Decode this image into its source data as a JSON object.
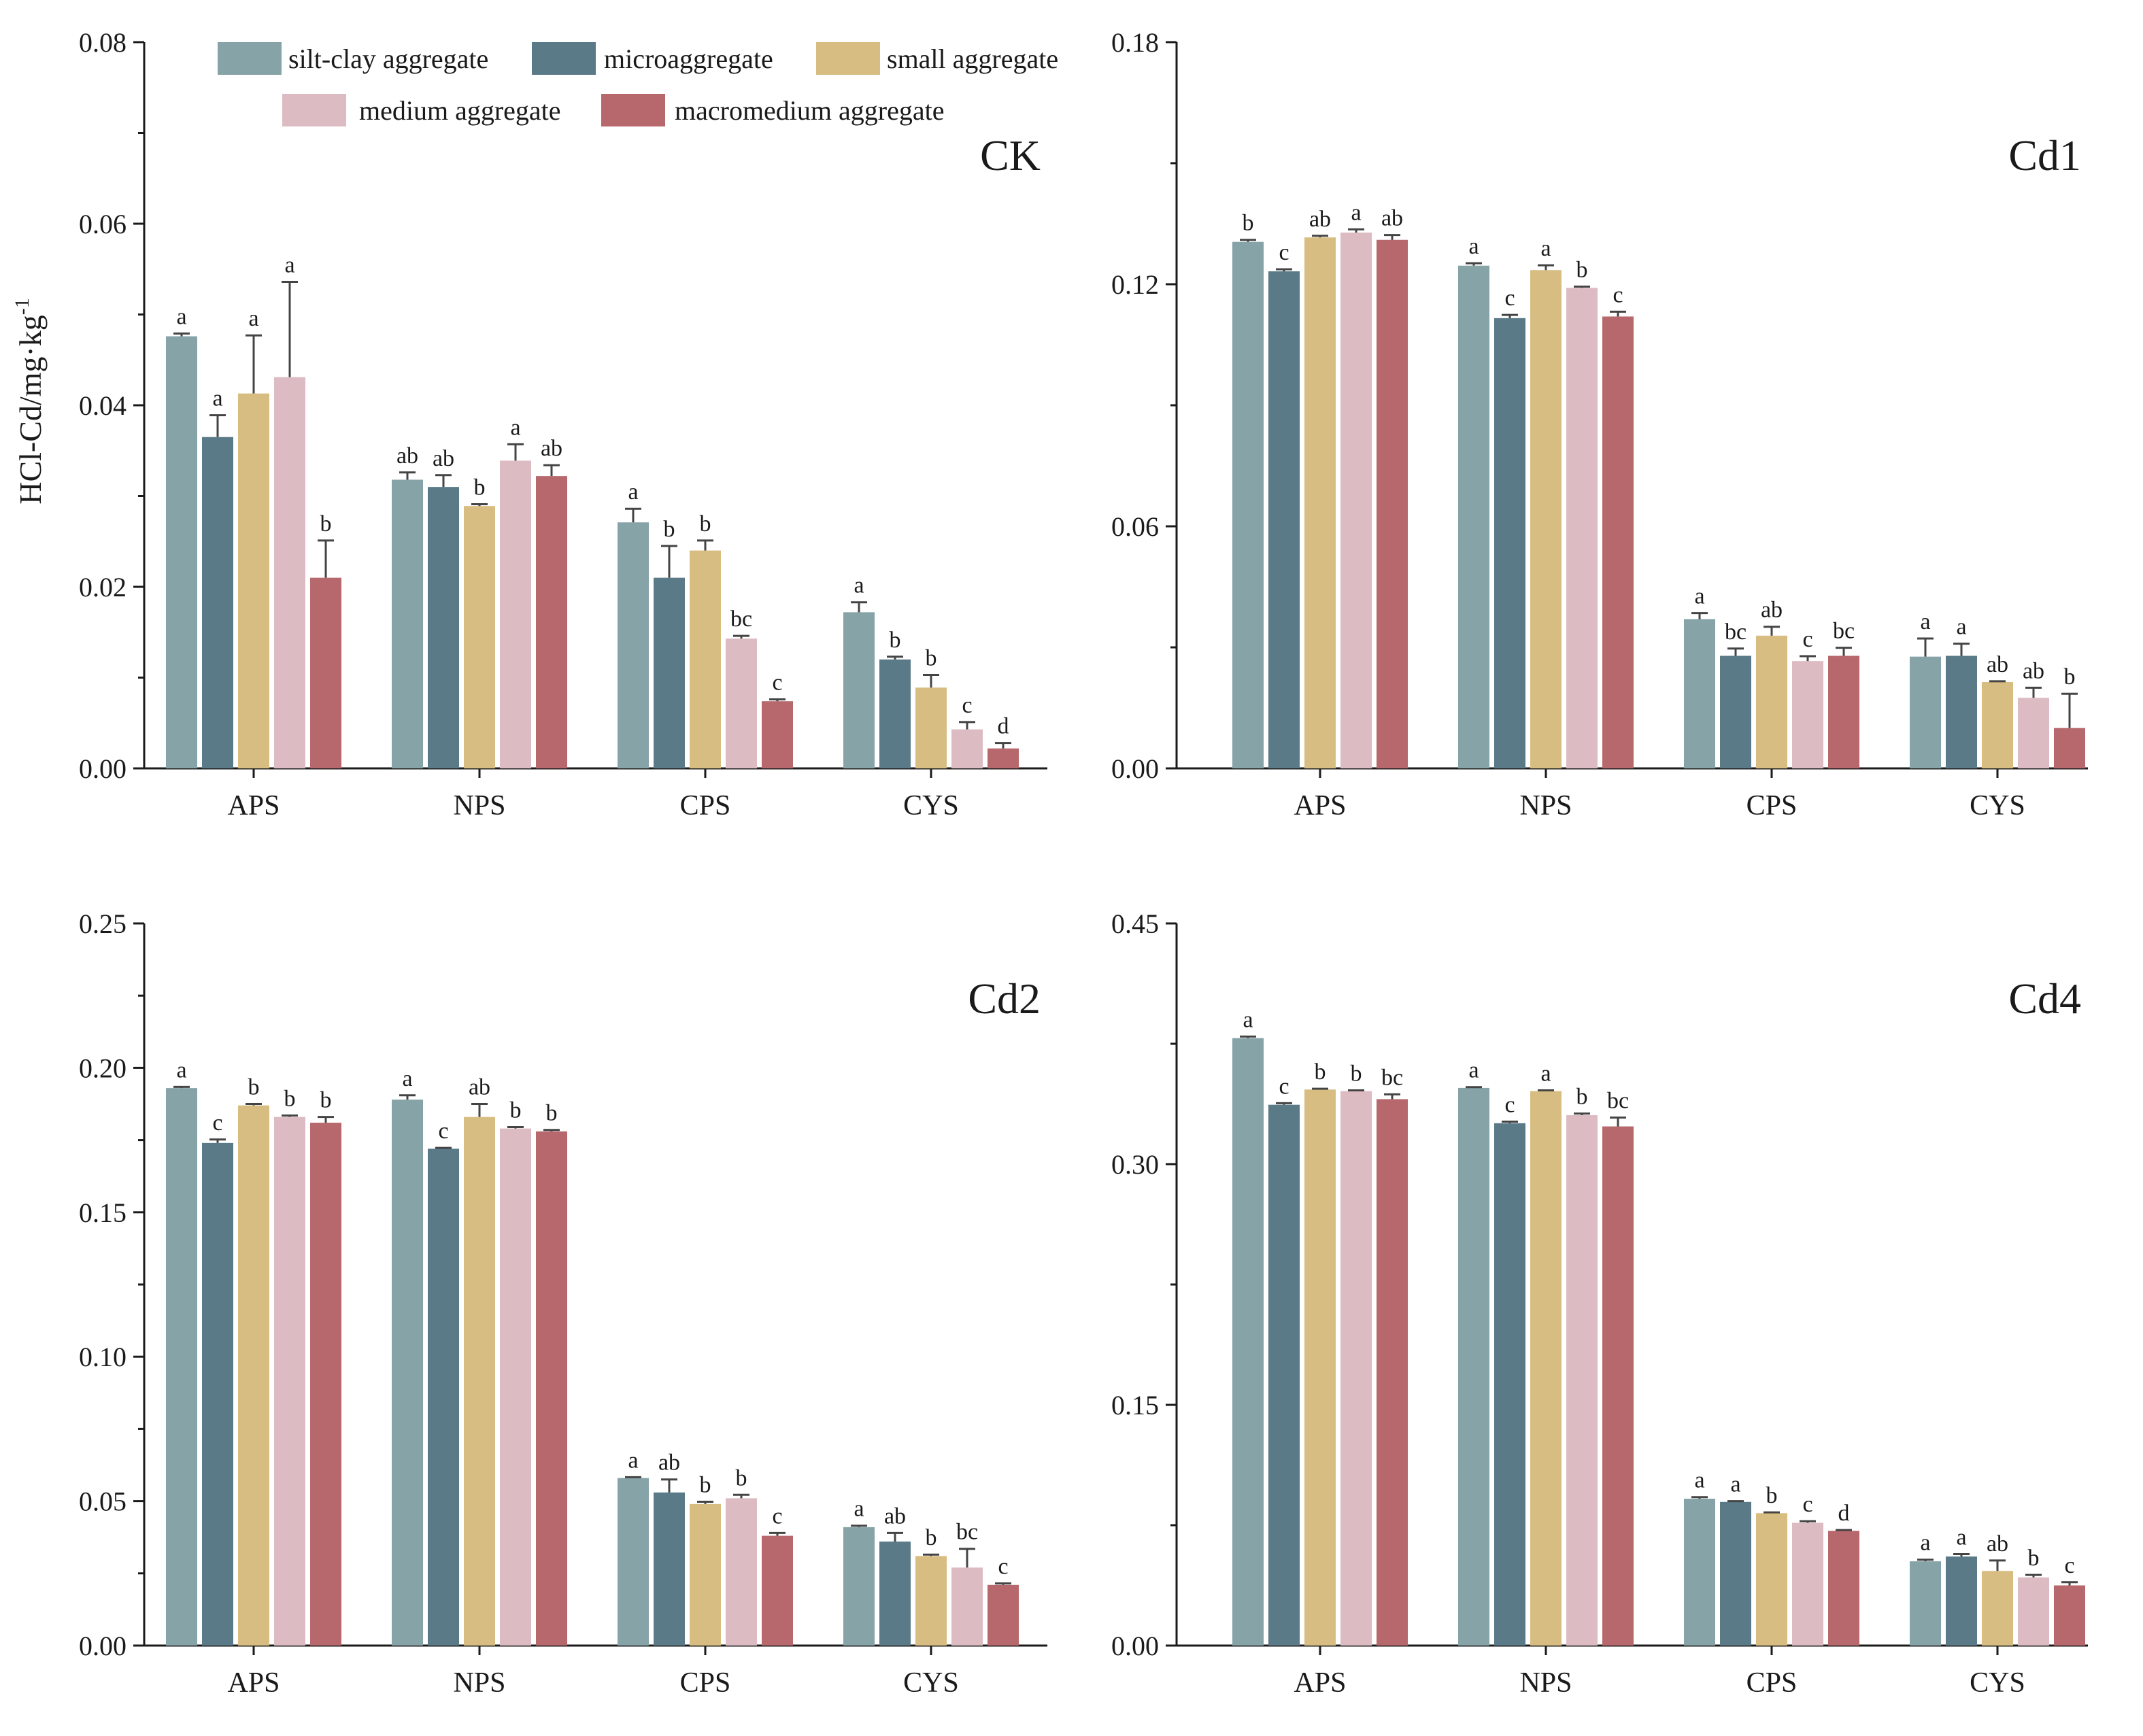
{
  "chart_data": {
    "type": "bar",
    "ylabel": "HCl-Cd/mg·kg",
    "ylabel_superscript": "-1",
    "categories": [
      "APS",
      "NPS",
      "CPS",
      "CYS"
    ],
    "series_names": [
      "silt-clay aggregate",
      "microaggregate",
      "small aggregate",
      "medium aggregate",
      "macromedium aggregate"
    ],
    "series_colors": [
      "#86a3a8",
      "#5a7a88",
      "#d8bd82",
      "#dcbcc2",
      "#b6686c"
    ],
    "panels": [
      {
        "label": "CK",
        "ylim": [
          0,
          0.08
        ],
        "yticks": [
          "0.00",
          "0.02",
          "0.04",
          "0.06",
          "0.08"
        ],
        "minor_ticks": true,
        "values": [
          [
            0.0476,
            0.0365,
            0.0413,
            0.0431,
            0.021
          ],
          [
            0.0318,
            0.031,
            0.0289,
            0.0339,
            0.0322
          ],
          [
            0.0271,
            0.021,
            0.024,
            0.0143,
            0.0074
          ],
          [
            0.0172,
            0.012,
            0.0089,
            0.0043,
            0.0022
          ]
        ],
        "errors": [
          [
            0.0003,
            0.0024,
            0.0064,
            0.0105,
            0.0041
          ],
          [
            0.0008,
            0.0013,
            0.0002,
            0.0018,
            0.0012
          ],
          [
            0.0015,
            0.0035,
            0.0011,
            0.0003,
            0.0002
          ],
          [
            0.0011,
            0.0003,
            0.0014,
            0.0008,
            0.0006
          ]
        ],
        "letters": [
          [
            "a",
            "a",
            "a",
            "a",
            "b"
          ],
          [
            "ab",
            "ab",
            "b",
            "a",
            "ab"
          ],
          [
            "a",
            "b",
            "b",
            "bc",
            "c"
          ],
          [
            "a",
            "b",
            "b",
            "c",
            "d"
          ]
        ]
      },
      {
        "label": "Cd1",
        "ylim": [
          0,
          0.18
        ],
        "yticks": [
          "0.00",
          "0.06",
          "0.12",
          "0.18"
        ],
        "minor_ticks": true,
        "values": [
          [
            0.1305,
            0.1232,
            0.1316,
            0.1328,
            0.131
          ],
          [
            0.1246,
            0.1116,
            0.1235,
            0.1191,
            0.112
          ],
          [
            0.037,
            0.0279,
            0.0329,
            0.0266,
            0.0279
          ],
          [
            0.0277,
            0.0279,
            0.0214,
            0.0175,
            0.01
          ]
        ],
        "errors": [
          [
            0.0005,
            0.0005,
            0.0004,
            0.0008,
            0.0012
          ],
          [
            0.0006,
            0.0008,
            0.0012,
            0.0003,
            0.0012
          ],
          [
            0.0015,
            0.0018,
            0.0022,
            0.0012,
            0.002
          ],
          [
            0.0045,
            0.003,
            0.0002,
            0.0025,
            0.0085
          ]
        ],
        "letters": [
          [
            "b",
            "c",
            "ab",
            "a",
            "ab"
          ],
          [
            "a",
            "c",
            "a",
            "b",
            "c"
          ],
          [
            "a",
            "bc",
            "ab",
            "c",
            "bc"
          ],
          [
            "a",
            "a",
            "ab",
            "ab",
            "b"
          ]
        ]
      },
      {
        "label": "Cd2",
        "ylim": [
          0,
          0.25
        ],
        "yticks": [
          "0.00",
          "0.05",
          "0.10",
          "0.15",
          "0.20",
          "0.25"
        ],
        "minor_ticks": true,
        "values": [
          [
            0.193,
            0.174,
            0.187,
            0.183,
            0.181
          ],
          [
            0.189,
            0.172,
            0.183,
            0.179,
            0.178
          ],
          [
            0.058,
            0.053,
            0.049,
            0.051,
            0.038
          ],
          [
            0.041,
            0.036,
            0.031,
            0.027,
            0.021
          ]
        ],
        "errors": [
          [
            0.0004,
            0.0012,
            0.0005,
            0.0005,
            0.002
          ],
          [
            0.0015,
            0.0003,
            0.0045,
            0.0005,
            0.0005
          ],
          [
            0.0003,
            0.0045,
            0.0008,
            0.0012,
            0.001
          ],
          [
            0.0005,
            0.003,
            0.0005,
            0.0065,
            0.0005
          ]
        ],
        "letters": [
          [
            "a",
            "c",
            "b",
            "b",
            "b"
          ],
          [
            "a",
            "c",
            "ab",
            "b",
            "b"
          ],
          [
            "a",
            "ab",
            "b",
            "b",
            "c"
          ],
          [
            "a",
            "ab",
            "b",
            "bc",
            "c"
          ]
        ]
      },
      {
        "label": "Cd4",
        "ylim": [
          0,
          0.45
        ],
        "yticks": [
          "0.00",
          "0.15",
          "0.30",
          "0.45"
        ],
        "minor_ticks": true,
        "values": [
          [
            0.3785,
            0.337,
            0.3465,
            0.3455,
            0.3405
          ],
          [
            0.3475,
            0.3255,
            0.3455,
            0.3305,
            0.3235
          ],
          [
            0.0915,
            0.0895,
            0.0825,
            0.0765,
            0.0715
          ],
          [
            0.0525,
            0.0555,
            0.0465,
            0.0425,
            0.0375
          ]
        ],
        "errors": [
          [
            0.001,
            0.001,
            0.0005,
            0.0005,
            0.003
          ],
          [
            0.0005,
            0.001,
            0.0005,
            0.001,
            0.0055
          ],
          [
            0.001,
            0.0005,
            0.0005,
            0.001,
            0.0005
          ],
          [
            0.001,
            0.0015,
            0.0065,
            0.0015,
            0.002
          ]
        ],
        "letters": [
          [
            "a",
            "c",
            "b",
            "b",
            "bc"
          ],
          [
            "a",
            "c",
            "a",
            "b",
            "bc"
          ],
          [
            "a",
            "a",
            "b",
            "c",
            "d"
          ],
          [
            "a",
            "a",
            "ab",
            "b",
            "c"
          ]
        ]
      }
    ]
  }
}
